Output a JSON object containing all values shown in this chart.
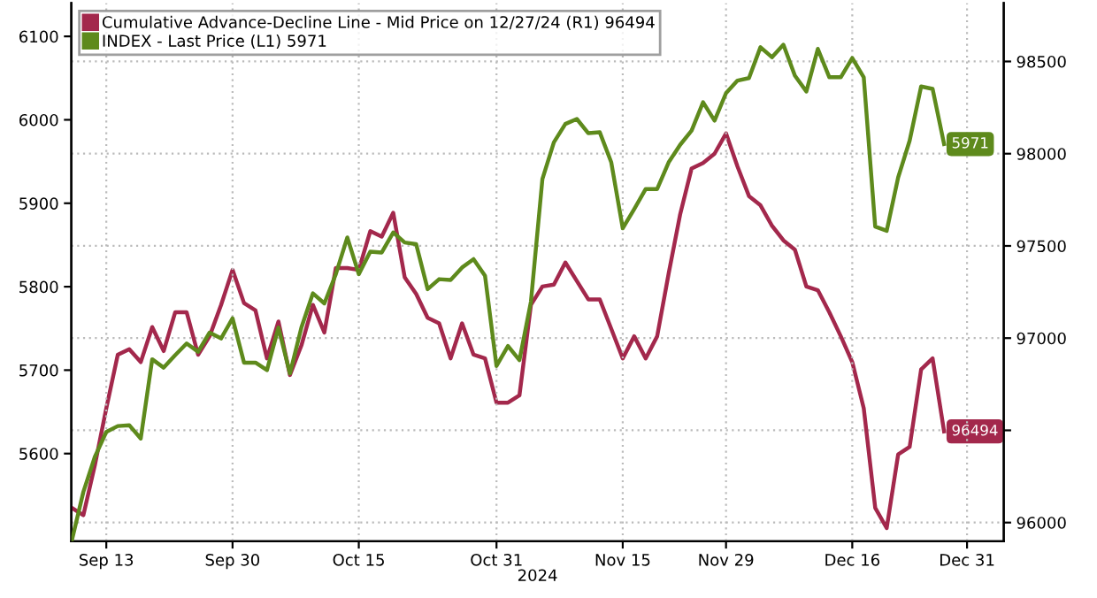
{
  "chart_data": {
    "type": "line",
    "categories": [
      null,
      null,
      null,
      "Sep 13",
      null,
      null,
      null,
      null,
      null,
      null,
      null,
      null,
      null,
      null,
      "Sep 30",
      null,
      null,
      null,
      null,
      null,
      null,
      null,
      null,
      null,
      null,
      "Oct 15",
      null,
      null,
      null,
      null,
      null,
      null,
      null,
      null,
      null,
      null,
      null,
      "Oct 31",
      null,
      null,
      null,
      null,
      null,
      null,
      null,
      null,
      null,
      null,
      "Nov 15",
      null,
      null,
      null,
      null,
      null,
      null,
      null,
      null,
      "Nov 29",
      null,
      null,
      null,
      null,
      null,
      null,
      null,
      null,
      null,
      null,
      "Dec 16",
      null,
      null,
      null,
      null,
      null,
      null,
      null,
      null,
      null,
      "Dec 31"
    ],
    "xlabel": "2024",
    "series": [
      {
        "name": "Cumulative Advance-Decline Line - Mid Price on 12/27/24 (R1) 96494",
        "color": "#a3284c",
        "axis": "y2",
        "values": [
          96080,
          96040,
          96310,
          96620,
          96910,
          96940,
          96870,
          97060,
          96930,
          97140,
          97140,
          96910,
          97010,
          97180,
          97370,
          97190,
          97150,
          96890,
          97090,
          96800,
          96960,
          97180,
          97030,
          97380,
          97380,
          97370,
          97580,
          97550,
          97680,
          97330,
          97240,
          97110,
          97080,
          96890,
          97080,
          96910,
          96890,
          96650,
          96650,
          96690,
          97180,
          97280,
          97290,
          97410,
          97310,
          97210,
          97210,
          97050,
          96890,
          97010,
          96890,
          97010,
          97350,
          97670,
          97920,
          97950,
          98000,
          98110,
          97930,
          97770,
          97720,
          97610,
          97530,
          97480,
          97280,
          97260,
          97140,
          97010,
          96870,
          96620,
          96080,
          95970,
          96370,
          96410,
          96830,
          96890,
          96494,
          null,
          null
        ],
        "value_labels": [
          null,
          null,
          null,
          null,
          null,
          null,
          null,
          null,
          null,
          null,
          null,
          null,
          null,
          null,
          null,
          null,
          null,
          null,
          null,
          null,
          null,
          null,
          null,
          null,
          null,
          null,
          null,
          null,
          null,
          null,
          null,
          null,
          null,
          null,
          null,
          null,
          null,
          null,
          null,
          null,
          null,
          null,
          null,
          null,
          null,
          null,
          null,
          null,
          null,
          null,
          null,
          null,
          null,
          null,
          null,
          null,
          null,
          null,
          null,
          null,
          null,
          null,
          null,
          null,
          null,
          null,
          null,
          null,
          null,
          null,
          null,
          null,
          null,
          null,
          null,
          null,
          "96494",
          null,
          null
        ]
      },
      {
        "name": "INDEX - Last Price (L1) 5971",
        "color": "#5e8a1c",
        "values": [
          5496,
          5554,
          5596,
          5626,
          5633,
          5634,
          5618,
          5713,
          5703,
          5718,
          5732,
          5722,
          5745,
          5738,
          5762,
          5709,
          5709,
          5700,
          5751,
          5696,
          5751,
          5792,
          5780,
          5815,
          5859,
          5815,
          5842,
          5841,
          5865,
          5853,
          5851,
          5797,
          5809,
          5808,
          5823,
          5833,
          5813,
          5705,
          5729,
          5712,
          5782,
          5929,
          5973,
          5995,
          6001,
          5984,
          5985,
          5949,
          5870,
          5893,
          5917,
          5917,
          5949,
          5970,
          5987,
          6021,
          5999,
          6032,
          6047,
          6050,
          6087,
          6075,
          6090,
          6053,
          6034,
          6085,
          6051,
          6051,
          6074,
          6051,
          5872,
          5867,
          5931,
          5975,
          6040,
          6037,
          5971,
          null,
          null
        ],
        "value_labels": [
          null,
          null,
          null,
          null,
          null,
          null,
          null,
          null,
          null,
          null,
          null,
          null,
          null,
          null,
          null,
          null,
          null,
          null,
          null,
          null,
          null,
          null,
          null,
          null,
          null,
          null,
          null,
          null,
          null,
          null,
          null,
          null,
          null,
          null,
          null,
          null,
          null,
          null,
          null,
          null,
          null,
          null,
          null,
          null,
          null,
          null,
          null,
          null,
          null,
          null,
          null,
          null,
          null,
          null,
          null,
          null,
          null,
          null,
          null,
          null,
          null,
          null,
          null,
          null,
          null,
          null,
          null,
          null,
          null,
          null,
          null,
          null,
          null,
          null,
          null,
          null,
          "5971",
          null,
          null
        ]
      }
    ],
    "ylim": [
      5495,
      6140
    ],
    "yticks": [
      5600,
      5700,
      5800,
      5900,
      6000,
      6100
    ],
    "y2lim": [
      95899,
      98817
    ],
    "y2ticks": [
      96000,
      {
        "value": 96500,
        "label": null
      },
      97000,
      97500,
      98000,
      98500
    ],
    "grid": true,
    "legend": "top left",
    "line_style": "solid",
    "marker": "none"
  }
}
